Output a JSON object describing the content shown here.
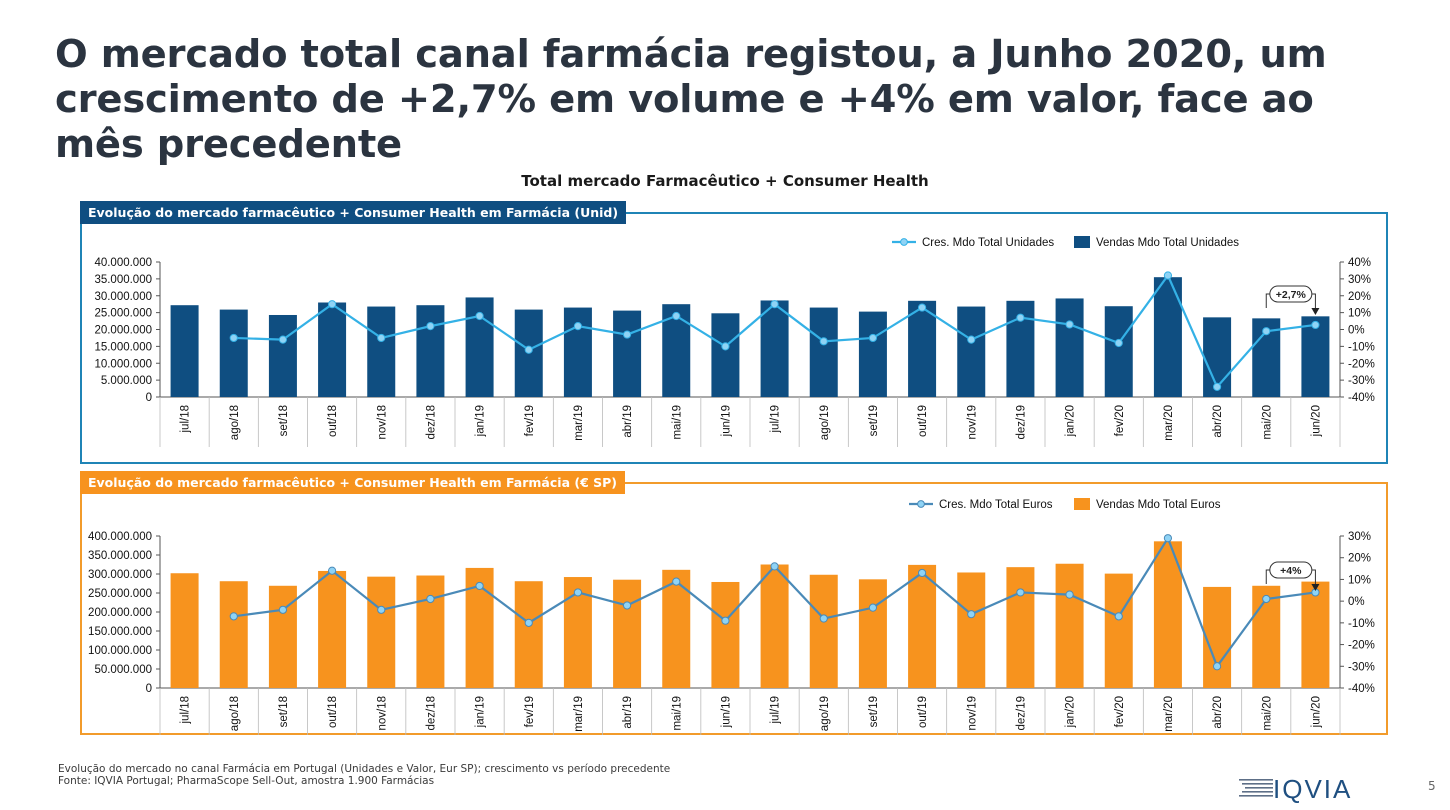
{
  "title": "O mercado total canal farmácia registou, a Junho 2020, um crescimento de +2,7% em volume e +4% em valor, face ao mês precedente",
  "subtitle": "Total mercado Farmacêutico + Consumer Health",
  "footer": {
    "line1": "Evolução do mercado no canal Farmácia em Portugal (Unidades e Valor, Eur SP); crescimento vs período precedente",
    "line2": "Fonte: IQVIA Portugal; PharmaScope Sell-Out, amostra 1.900 Farmácias"
  },
  "logo": {
    "text": "IQVIA"
  },
  "page_number": "5",
  "chart_data": [
    {
      "type": "bar",
      "title": "Evolução do mercado farmacêutico + Consumer Health em Farmácia (Unid)",
      "categories": [
        "jul/18",
        "ago/18",
        "set/18",
        "out/18",
        "nov/18",
        "dez/18",
        "jan/19",
        "fev/19",
        "mar/19",
        "abr/19",
        "mai/19",
        "jun/19",
        "jul/19",
        "ago/19",
        "set/19",
        "out/19",
        "nov/19",
        "dez/19",
        "jan/20",
        "fev/20",
        "mar/20",
        "abr/20",
        "mai/20",
        "jun/20"
      ],
      "series": [
        {
          "name": "Vendas Mdo Total Unidades",
          "type": "bar",
          "axis": "left",
          "color": "#0f4e81",
          "values": [
            27200000,
            25900000,
            24300000,
            28000000,
            26800000,
            27200000,
            29500000,
            25900000,
            26500000,
            25600000,
            27500000,
            24800000,
            28600000,
            26500000,
            25300000,
            28500000,
            26800000,
            28500000,
            29200000,
            26900000,
            35500000,
            23600000,
            23300000,
            23900000
          ]
        },
        {
          "name": "Cres. Mdo Total Unidades",
          "type": "line",
          "axis": "right",
          "color": "#34b1e6",
          "values": [
            null,
            -5,
            -6,
            15,
            -5,
            2,
            8,
            -12,
            2,
            -3,
            8,
            -10,
            15,
            -7,
            -5,
            13,
            -6,
            7,
            3,
            -8,
            32,
            -34,
            -1,
            2.7
          ]
        }
      ],
      "ylim": [
        0,
        40000000
      ],
      "y_ticks": [
        "40.000.000",
        "35.000.000",
        "30.000.000",
        "25.000.000",
        "20.000.000",
        "15.000.000",
        "10.000.000",
        "5.000.000",
        "0"
      ],
      "y2lim": [
        -40,
        40
      ],
      "y2_ticks": [
        "40%",
        "30%",
        "20%",
        "10%",
        "0%",
        "-10%",
        "-20%",
        "-30%",
        "-40%"
      ],
      "annotation": "+2,7%",
      "legend_position": "top-right"
    },
    {
      "type": "bar",
      "title": "Evolução do mercado farmacêutico + Consumer Health em Farmácia (€ SP)",
      "categories": [
        "jul/18",
        "ago/18",
        "set/18",
        "out/18",
        "nov/18",
        "dez/18",
        "jan/19",
        "fev/19",
        "mar/19",
        "abr/19",
        "mai/19",
        "jun/19",
        "jul/19",
        "ago/19",
        "set/19",
        "out/19",
        "nov/19",
        "dez/19",
        "jan/20",
        "fev/20",
        "mar/20",
        "abr/20",
        "mai/20",
        "jun/20"
      ],
      "series": [
        {
          "name": "Vendas Mdo Total Euros",
          "type": "bar",
          "axis": "left",
          "color": "#f7931e",
          "values": [
            302000000,
            281000000,
            269000000,
            308000000,
            293000000,
            296000000,
            316000000,
            281000000,
            292000000,
            285000000,
            311000000,
            279000000,
            325000000,
            298000000,
            286000000,
            324000000,
            304000000,
            318000000,
            327000000,
            301000000,
            386000000,
            266000000,
            269000000,
            280000000
          ]
        },
        {
          "name": "Cres. Mdo Total Euros",
          "type": "line",
          "axis": "right",
          "color": "#4a8ab8",
          "values": [
            null,
            -7,
            -4,
            14,
            -4,
            1,
            7,
            -10,
            4,
            -2,
            9,
            -9,
            16,
            -8,
            -3,
            13,
            -6,
            4,
            3,
            -7,
            29,
            -30,
            1,
            4
          ]
        }
      ],
      "ylim": [
        0,
        400000000
      ],
      "y_ticks": [
        "400.000.000",
        "350.000.000",
        "300.000.000",
        "250.000.000",
        "200.000.000",
        "150.000.000",
        "100.000.000",
        "50.000.000",
        "0"
      ],
      "y2lim": [
        -40,
        30
      ],
      "y2_ticks": [
        "30%",
        "20%",
        "10%",
        "0%",
        "-10%",
        "-20%",
        "-30%",
        "-40%"
      ],
      "annotation": "+4%",
      "legend_position": "top-right"
    }
  ]
}
